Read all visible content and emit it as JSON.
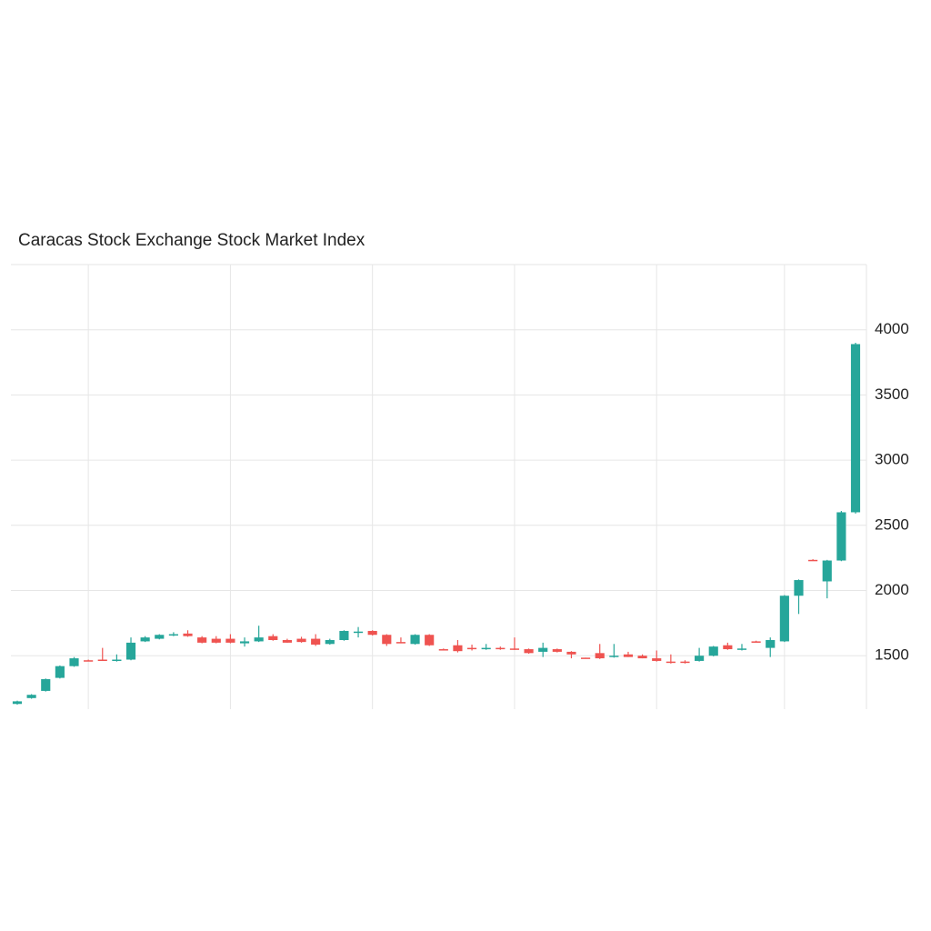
{
  "chart_data": {
    "type": "candlestick",
    "title": "Caracas Stock Exchange Stock Market Index",
    "categories": [
      null,
      null,
      null,
      null,
      null,
      null,
      null,
      null,
      null,
      null,
      null,
      null,
      null,
      null,
      null,
      null,
      null,
      null,
      null,
      null,
      null,
      null,
      null,
      null,
      null,
      null,
      null,
      null,
      null,
      null,
      null,
      null,
      null,
      null,
      null,
      null,
      null,
      null,
      null,
      null,
      null,
      null,
      null,
      null,
      null,
      null,
      null,
      null,
      null,
      null,
      null,
      null,
      null,
      null,
      null,
      null,
      null,
      null,
      null,
      null
    ],
    "open": [
      1130,
      1175,
      1230,
      1330,
      1420,
      1465,
      1470,
      1460,
      1470,
      1610,
      1630,
      1660,
      1670,
      1640,
      1630,
      1630,
      1595,
      1610,
      1650,
      1620,
      1630,
      1630,
      1590,
      1620,
      1680,
      1690,
      1660,
      1605,
      1590,
      1660,
      1550,
      1580,
      1560,
      1550,
      1560,
      1555,
      1550,
      1530,
      1550,
      1530,
      1485,
      1520,
      1490,
      1510,
      1500,
      1480,
      1455,
      1455,
      1460,
      1500,
      1580,
      1550,
      1610,
      1560,
      1610,
      1960,
      2235,
      2070,
      2230,
      2600
    ],
    "high": [
      1155,
      1205,
      1325,
      1425,
      1490,
      1470,
      1560,
      1510,
      1640,
      1650,
      1665,
      1680,
      1695,
      1650,
      1650,
      1665,
      1640,
      1730,
      1665,
      1630,
      1645,
      1665,
      1630,
      1695,
      1720,
      1695,
      1665,
      1640,
      1665,
      1665,
      1555,
      1620,
      1585,
      1590,
      1570,
      1640,
      1555,
      1600,
      1555,
      1535,
      1485,
      1590,
      1590,
      1530,
      1510,
      1540,
      1510,
      1465,
      1560,
      1575,
      1600,
      1590,
      1615,
      1640,
      1965,
      2085,
      2240,
      2235,
      2610,
      3900
    ],
    "low": [
      1125,
      1170,
      1225,
      1325,
      1415,
      1460,
      1460,
      1455,
      1465,
      1605,
      1625,
      1650,
      1645,
      1595,
      1595,
      1595,
      1570,
      1605,
      1615,
      1600,
      1600,
      1575,
      1585,
      1615,
      1640,
      1655,
      1575,
      1595,
      1585,
      1575,
      1545,
      1525,
      1540,
      1545,
      1545,
      1545,
      1515,
      1490,
      1525,
      1480,
      1480,
      1475,
      1485,
      1490,
      1480,
      1455,
      1440,
      1440,
      1455,
      1495,
      1545,
      1540,
      1605,
      1490,
      1605,
      1820,
      2230,
      1940,
      2225,
      2590
    ],
    "close": [
      1150,
      1200,
      1320,
      1420,
      1480,
      1460,
      1460,
      1470,
      1600,
      1640,
      1660,
      1665,
      1650,
      1600,
      1600,
      1600,
      1610,
      1640,
      1620,
      1600,
      1605,
      1585,
      1620,
      1690,
      1685,
      1660,
      1590,
      1600,
      1660,
      1580,
      1545,
      1535,
      1550,
      1560,
      1550,
      1550,
      1520,
      1560,
      1530,
      1510,
      1480,
      1480,
      1500,
      1490,
      1480,
      1460,
      1450,
      1450,
      1500,
      1570,
      1550,
      1555,
      1605,
      1620,
      1960,
      2080,
      2230,
      2230,
      2600,
      3890
    ],
    "up_color": "#26a69a",
    "down_color": "#ef5350",
    "ylim": [
      1090,
      4500
    ],
    "yticks": [
      1500,
      2000,
      2500,
      3000,
      3500,
      4000
    ],
    "grid": true
  }
}
